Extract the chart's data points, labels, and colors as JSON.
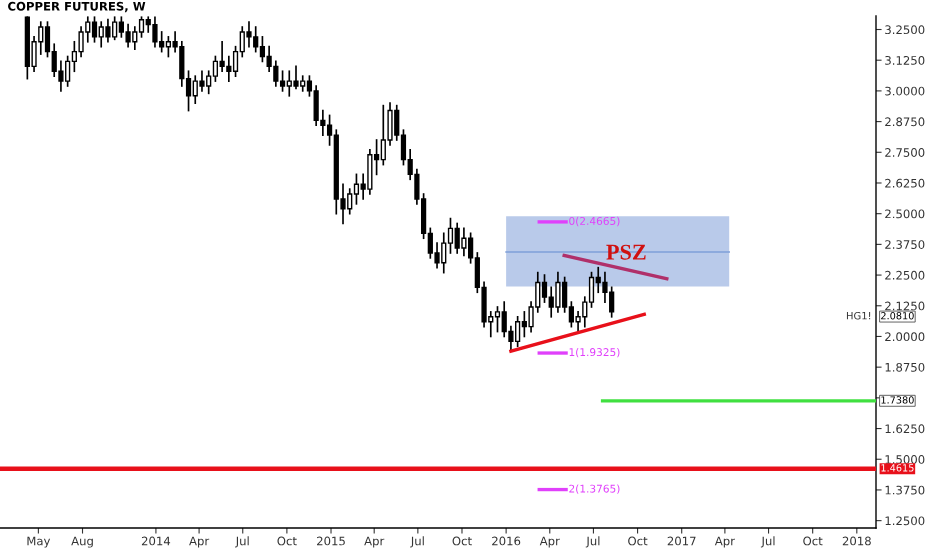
{
  "chart_data": {
    "type": "candlestick",
    "title": "COPPER FUTURES, W",
    "x": [
      "2013-04-08",
      "2013-04-22",
      "2013-05-06",
      "2013-05-20",
      "2013-06-03",
      "2013-06-17",
      "2013-07-01",
      "2013-07-15",
      "2013-07-29",
      "2013-08-12",
      "2013-08-26",
      "2013-09-09",
      "2013-09-23",
      "2013-10-07",
      "2013-10-21",
      "2013-11-04",
      "2013-11-18",
      "2013-12-02",
      "2013-12-16",
      "2013-12-30",
      "2014-01-13",
      "2014-01-27",
      "2014-02-10",
      "2014-02-24",
      "2014-03-10",
      "2014-03-24",
      "2014-04-07",
      "2014-04-21",
      "2014-05-05",
      "2014-05-19",
      "2014-06-02",
      "2014-06-16",
      "2014-06-30",
      "2014-07-14",
      "2014-07-28",
      "2014-08-11",
      "2014-08-25",
      "2014-09-08",
      "2014-09-22",
      "2014-10-06",
      "2014-10-20",
      "2014-11-03",
      "2014-11-17",
      "2014-12-01",
      "2014-12-15",
      "2014-12-29",
      "2015-01-12",
      "2015-01-26",
      "2015-02-09",
      "2015-02-23",
      "2015-03-09",
      "2015-03-23",
      "2015-04-06",
      "2015-04-20",
      "2015-05-04",
      "2015-05-18",
      "2015-06-01",
      "2015-06-15",
      "2015-06-29",
      "2015-07-13",
      "2015-07-27",
      "2015-08-10",
      "2015-08-24",
      "2015-09-07",
      "2015-09-21",
      "2015-10-05",
      "2015-10-19",
      "2015-11-02",
      "2015-11-16",
      "2015-11-30",
      "2015-12-14",
      "2015-12-28",
      "2016-01-11",
      "2016-01-25",
      "2016-02-08",
      "2016-02-22",
      "2016-03-07",
      "2016-03-21",
      "2016-04-04",
      "2016-04-18",
      "2016-05-02",
      "2016-05-16",
      "2016-05-30",
      "2016-06-13",
      "2016-06-27",
      "2016-07-11",
      "2016-07-25",
      "2016-08-08"
    ],
    "ohlc": [
      [
        3.3,
        3.3,
        3.05,
        3.1
      ],
      [
        3.1,
        3.22,
        3.08,
        3.2
      ],
      [
        3.2,
        3.28,
        3.15,
        3.26
      ],
      [
        3.26,
        3.28,
        3.14,
        3.16
      ],
      [
        3.16,
        3.19,
        3.06,
        3.08
      ],
      [
        3.08,
        3.12,
        3.0,
        3.04
      ],
      [
        3.04,
        3.14,
        3.02,
        3.12
      ],
      [
        3.12,
        3.2,
        3.08,
        3.16
      ],
      [
        3.16,
        3.26,
        3.14,
        3.24
      ],
      [
        3.24,
        3.3,
        3.2,
        3.28
      ],
      [
        3.28,
        3.3,
        3.2,
        3.22
      ],
      [
        3.22,
        3.28,
        3.18,
        3.26
      ],
      [
        3.26,
        3.29,
        3.2,
        3.22
      ],
      [
        3.22,
        3.3,
        3.21,
        3.28
      ],
      [
        3.28,
        3.3,
        3.22,
        3.24
      ],
      [
        3.24,
        3.27,
        3.18,
        3.2
      ],
      [
        3.2,
        3.26,
        3.17,
        3.24
      ],
      [
        3.24,
        3.3,
        3.22,
        3.29
      ],
      [
        3.29,
        3.3,
        3.24,
        3.27
      ],
      [
        3.27,
        3.3,
        3.18,
        3.2
      ],
      [
        3.2,
        3.24,
        3.16,
        3.18
      ],
      [
        3.18,
        3.22,
        3.14,
        3.2
      ],
      [
        3.2,
        3.24,
        3.16,
        3.18
      ],
      [
        3.18,
        3.2,
        3.02,
        3.05
      ],
      [
        3.05,
        3.08,
        2.92,
        2.98
      ],
      [
        2.98,
        3.06,
        2.95,
        3.04
      ],
      [
        3.04,
        3.08,
        3.0,
        3.02
      ],
      [
        3.02,
        3.08,
        2.99,
        3.06
      ],
      [
        3.06,
        3.14,
        3.04,
        3.12
      ],
      [
        3.12,
        3.2,
        3.08,
        3.1
      ],
      [
        3.1,
        3.14,
        3.04,
        3.08
      ],
      [
        3.08,
        3.18,
        3.06,
        3.16
      ],
      [
        3.16,
        3.26,
        3.14,
        3.24
      ],
      [
        3.24,
        3.28,
        3.18,
        3.22
      ],
      [
        3.22,
        3.26,
        3.16,
        3.18
      ],
      [
        3.18,
        3.22,
        3.12,
        3.14
      ],
      [
        3.14,
        3.18,
        3.08,
        3.1
      ],
      [
        3.1,
        3.12,
        3.02,
        3.04
      ],
      [
        3.04,
        3.08,
        3.0,
        3.02
      ],
      [
        3.02,
        3.08,
        2.98,
        3.04
      ],
      [
        3.04,
        3.1,
        3.01,
        3.02
      ],
      [
        3.02,
        3.06,
        3.0,
        3.04
      ],
      [
        3.04,
        3.06,
        2.98,
        3.0
      ],
      [
        3.0,
        3.02,
        2.86,
        2.88
      ],
      [
        2.88,
        2.92,
        2.82,
        2.86
      ],
      [
        2.86,
        2.9,
        2.78,
        2.82
      ],
      [
        2.82,
        2.84,
        2.5,
        2.56
      ],
      [
        2.56,
        2.62,
        2.46,
        2.52
      ],
      [
        2.52,
        2.6,
        2.5,
        2.58
      ],
      [
        2.58,
        2.66,
        2.54,
        2.62
      ],
      [
        2.62,
        2.66,
        2.56,
        2.6
      ],
      [
        2.6,
        2.76,
        2.58,
        2.74
      ],
      [
        2.74,
        2.8,
        2.66,
        2.72
      ],
      [
        2.72,
        2.94,
        2.7,
        2.8
      ],
      [
        2.8,
        2.95,
        2.78,
        2.92
      ],
      [
        2.92,
        2.94,
        2.8,
        2.82
      ],
      [
        2.82,
        2.84,
        2.7,
        2.72
      ],
      [
        2.72,
        2.76,
        2.64,
        2.66
      ],
      [
        2.66,
        2.68,
        2.54,
        2.56
      ],
      [
        2.56,
        2.58,
        2.4,
        2.42
      ],
      [
        2.42,
        2.44,
        2.32,
        2.34
      ],
      [
        2.34,
        2.38,
        2.28,
        2.3
      ],
      [
        2.3,
        2.42,
        2.26,
        2.38
      ],
      [
        2.38,
        2.48,
        2.34,
        2.44
      ],
      [
        2.44,
        2.46,
        2.34,
        2.36
      ],
      [
        2.36,
        2.44,
        2.33,
        2.4
      ],
      [
        2.4,
        2.42,
        2.3,
        2.32
      ],
      [
        2.32,
        2.34,
        2.18,
        2.2
      ],
      [
        2.2,
        2.22,
        2.04,
        2.06
      ],
      [
        2.06,
        2.1,
        2.0,
        2.08
      ],
      [
        2.08,
        2.12,
        2.02,
        2.1
      ],
      [
        2.1,
        2.14,
        2.0,
        2.02
      ],
      [
        2.02,
        2.04,
        1.94,
        1.98
      ],
      [
        1.98,
        2.08,
        1.96,
        2.06
      ],
      [
        2.06,
        2.1,
        2.0,
        2.04
      ],
      [
        2.04,
        2.14,
        2.02,
        2.12
      ],
      [
        2.12,
        2.26,
        2.1,
        2.22
      ],
      [
        2.22,
        2.25,
        2.14,
        2.16
      ],
      [
        2.16,
        2.2,
        2.08,
        2.12
      ],
      [
        2.12,
        2.26,
        2.1,
        2.22
      ],
      [
        2.22,
        2.24,
        2.1,
        2.12
      ],
      [
        2.12,
        2.14,
        2.04,
        2.06
      ],
      [
        2.06,
        2.1,
        2.02,
        2.08
      ],
      [
        2.08,
        2.16,
        2.04,
        2.14
      ],
      [
        2.14,
        2.26,
        2.12,
        2.24
      ],
      [
        2.24,
        2.28,
        2.18,
        2.22
      ],
      [
        2.22,
        2.26,
        2.14,
        2.18
      ],
      [
        2.18,
        2.2,
        2.08,
        2.1
      ]
    ],
    "color": "#000000",
    "series": [
      {
        "type": "line",
        "color": "#7f9fd8",
        "x": [
          "2016-01-01",
          "2017-04-10"
        ],
        "values": [
          2.344,
          2.344
        ],
        "lower": [
          2.203,
          2.203
        ],
        "upper": [
          2.49,
          2.49
        ]
      },
      {
        "type": "line",
        "color": "#b0306a",
        "x": [
          "2016-05-01",
          "2016-12-01"
        ],
        "values": [
          2.33,
          2.235
        ]
      },
      {
        "type": "line",
        "color": "#e8101a",
        "x": [
          "2016-01-11",
          "2016-10-15"
        ],
        "values": [
          1.94,
          2.09
        ]
      },
      {
        "type": "line",
        "color": "#e040fb",
        "x": [
          "2016-03-10",
          "2016-05-05"
        ],
        "values": [
          2.4665,
          2.4665
        ]
      },
      {
        "type": "line",
        "color": "#e040fb",
        "x": [
          "2016-03-10",
          "2016-05-05"
        ],
        "values": [
          1.9325,
          1.9325
        ]
      },
      {
        "type": "line",
        "color": "#e040fb",
        "x": [
          "2016-03-10",
          "2016-05-05"
        ],
        "values": [
          1.3765,
          1.3765
        ]
      },
      {
        "type": "line",
        "color": "#40e040",
        "x": [
          "2016-07-20",
          "2018-02-10"
        ],
        "values": [
          1.738,
          1.738
        ]
      }
    ],
    "ref_lines": [
      {
        "axis": "y",
        "value": 1.4615,
        "label": "1.4615",
        "color": "#e8101a"
      }
    ],
    "annotations": [
      "PSZ",
      {
        "text": "0(2.4665)",
        "x": "2016-05-10",
        "y": 2.4665
      },
      {
        "text": "1(1.9325)",
        "x": "2016-05-10",
        "y": 1.9325
      },
      {
        "text": "2(1.3765)",
        "x": "2016-05-10",
        "y": 1.3765
      },
      "HG1!",
      {
        "text": "2.0810",
        "y": 2.081
      },
      {
        "text": "1.7380",
        "y": 1.738
      }
    ],
    "xlim": [
      "2013-02-10",
      "2018-02-10"
    ],
    "xticks": [
      {
        "value": "2013-05-01",
        "label": "May"
      },
      {
        "value": "2013-08-01",
        "label": "Aug"
      },
      {
        "value": "2014-01-01",
        "label": "2014"
      },
      {
        "value": "2014-04-01",
        "label": "Apr"
      },
      {
        "value": "2014-07-01",
        "label": "Jul"
      },
      {
        "value": "2014-10-01",
        "label": "Oct"
      },
      {
        "value": "2015-01-01",
        "label": "2015"
      },
      {
        "value": "2015-04-01",
        "label": "Apr"
      },
      {
        "value": "2015-07-01",
        "label": "Jul"
      },
      {
        "value": "2015-10-01",
        "label": "Oct"
      },
      {
        "value": "2016-01-01",
        "label": "2016"
      },
      {
        "value": "2016-04-01",
        "label": "Apr"
      },
      {
        "value": "2016-07-01",
        "label": "Jul"
      },
      {
        "value": "2016-10-01",
        "label": "Oct"
      },
      {
        "value": "2017-01-01",
        "label": "2017"
      },
      {
        "value": "2017-04-01",
        "label": "Apr"
      },
      {
        "value": "2017-07-01",
        "label": "Jul"
      },
      {
        "value": "2017-10-01",
        "label": "Oct"
      },
      {
        "value": "2018-01-01",
        "label": "2018"
      }
    ],
    "ylim": [
      1.22,
      3.305
    ],
    "yticks": [
      {
        "value": 1.25,
        "label": "1.2500"
      },
      {
        "value": 1.375,
        "label": "1.3750"
      },
      {
        "value": 1.5,
        "label": "1.5000"
      },
      {
        "value": 1.625,
        "label": "1.6250"
      },
      {
        "value": 1.75,
        "label": null
      },
      {
        "value": 1.875,
        "label": "1.8750"
      },
      {
        "value": 2.0,
        "label": "2.0000"
      },
      {
        "value": 2.125,
        "label": "2.1250"
      },
      {
        "value": 2.25,
        "label": "2.2500"
      },
      {
        "value": 2.375,
        "label": "2.3750"
      },
      {
        "value": 2.5,
        "label": "2.5000"
      },
      {
        "value": 2.625,
        "label": "2.6250"
      },
      {
        "value": 2.75,
        "label": "2.7500"
      },
      {
        "value": 2.875,
        "label": "2.8750"
      },
      {
        "value": 3.0,
        "label": "3.0000"
      },
      {
        "value": 3.125,
        "label": "3.1250"
      },
      {
        "value": 3.25,
        "label": "3.2500"
      }
    ],
    "grid": false,
    "legend": false
  }
}
